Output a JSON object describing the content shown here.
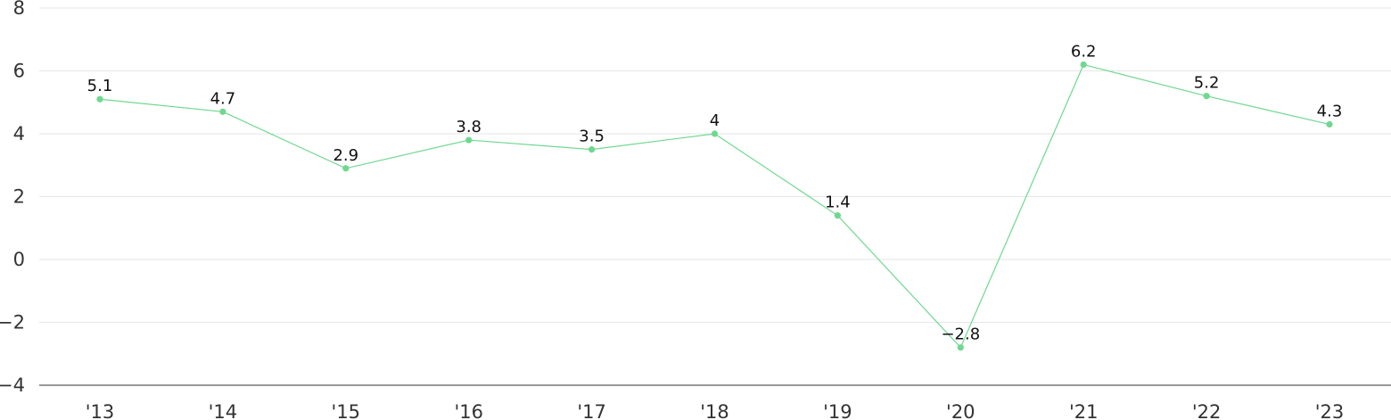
{
  "chart_data": {
    "type": "line",
    "title": "",
    "xlabel": "",
    "ylabel": "",
    "categories": [
      "'13",
      "'14",
      "'15",
      "'16",
      "'17",
      "'18",
      "'19",
      "'20",
      "'21",
      "'22",
      "'23"
    ],
    "series": [
      {
        "values": [
          5.1,
          4.7,
          2.9,
          3.8,
          3.5,
          4,
          1.4,
          -2.8,
          6.2,
          5.2,
          4.3
        ],
        "color": "#6fd88f"
      }
    ],
    "data_labels": [
      "5.1",
      "4.7",
      "2.9",
      "3.8",
      "3.5",
      "4",
      "1.4",
      "−2.8",
      "6.2",
      "5.2",
      "4.3"
    ],
    "yticks": [
      8,
      6,
      4,
      2,
      0,
      -2,
      -4
    ],
    "ytick_labels": [
      "8",
      "6",
      "4",
      "2",
      "0",
      "−2",
      "−4"
    ],
    "ylim": [
      -4,
      8
    ],
    "grid": true,
    "legend": "none"
  }
}
